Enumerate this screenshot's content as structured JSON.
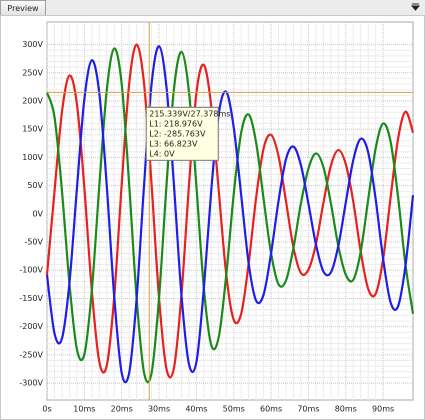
{
  "tab": "Preview",
  "chart_data": {
    "type": "line",
    "x": [
      0,
      2,
      4,
      6,
      8,
      10,
      12,
      14,
      16,
      18,
      20,
      22,
      24,
      26,
      28,
      30,
      32,
      34,
      36,
      38,
      40,
      42,
      44,
      46,
      48,
      50,
      52,
      54,
      56,
      58,
      60,
      62,
      64,
      66,
      68,
      70,
      72,
      74,
      76,
      78,
      80,
      82,
      84,
      86,
      88,
      90,
      92,
      94,
      96,
      98
    ],
    "series": [
      {
        "name": "L1",
        "color": "#e8201e",
        "values": [
          -108,
          39,
          180,
          245,
          195,
          46,
          -136,
          -262,
          -269,
          -147,
          52,
          230,
          300,
          230,
          52,
          -149,
          -275,
          -273,
          -144,
          49,
          214,
          264,
          190,
          40,
          -108,
          -188,
          -177,
          -88,
          29,
          116,
          140,
          102,
          22,
          -60,
          -105,
          -99,
          -54,
          19,
          85,
          113,
          88,
          22,
          -67,
          -133,
          -142,
          -80,
          29,
          133,
          181,
          144
        ]
      },
      {
        "name": "L2",
        "color": "#1a8a1a",
        "values": [
          215,
          172,
          41,
          -123,
          -240,
          -249,
          -136,
          49,
          219,
          293,
          230,
          52,
          -150,
          -282,
          -282,
          -149,
          51,
          222,
          287,
          217,
          49,
          -132,
          -233,
          -218,
          -108,
          35,
          144,
          176,
          126,
          26,
          -70,
          -125,
          -118,
          -60,
          19,
          80,
          107,
          83,
          19,
          -57,
          -108,
          -117,
          -67,
          25,
          116,
          160,
          128,
          30,
          -91,
          -177
        ]
      },
      {
        "name": "L3",
        "color": "#1e1ee8",
        "values": [
          -108,
          -212,
          -221,
          -123,
          44,
          203,
          272,
          214,
          50,
          -147,
          -282,
          -282,
          -150,
          52,
          230,
          297,
          224,
          50,
          -144,
          -266,
          -263,
          -132,
          43,
          178,
          216,
          153,
          33,
          -88,
          -154,
          -143,
          -70,
          23,
          97,
          119,
          86,
          18,
          -54,
          -102,
          -104,
          -57,
          20,
          95,
          133,
          109,
          26,
          -80,
          -157,
          -164,
          -91,
          33
        ]
      }
    ],
    "xlim": [
      0,
      98
    ],
    "xticks": [
      {
        "value": 0,
        "label": "0s"
      },
      {
        "value": 10,
        "label": "10ms"
      },
      {
        "value": 20,
        "label": "20ms"
      },
      {
        "value": 30,
        "label": "30ms"
      },
      {
        "value": 40,
        "label": "40ms"
      },
      {
        "value": 50,
        "label": "50ms"
      },
      {
        "value": 60,
        "label": "60ms"
      },
      {
        "value": 70,
        "label": "70ms"
      },
      {
        "value": 80,
        "label": "80ms"
      },
      {
        "value": 90,
        "label": "90ms"
      }
    ],
    "ylim": [
      -330,
      340
    ],
    "yticks": [
      {
        "value": -300,
        "label": "-300V"
      },
      {
        "value": -250,
        "label": "-250V"
      },
      {
        "value": -200,
        "label": "-200V"
      },
      {
        "value": -150,
        "label": "-150V"
      },
      {
        "value": -100,
        "label": "-100V"
      },
      {
        "value": -50,
        "label": "-50V"
      },
      {
        "value": 0,
        "label": "0V"
      },
      {
        "value": 50,
        "label": "50V"
      },
      {
        "value": 100,
        "label": "100V"
      },
      {
        "value": 150,
        "label": "150V"
      },
      {
        "value": 200,
        "label": "200V"
      },
      {
        "value": 250,
        "label": "250V"
      },
      {
        "value": 300,
        "label": "300V"
      }
    ],
    "grid": true,
    "cursor": {
      "x": 27.378,
      "y": 215.339,
      "color": "#d4a040",
      "lines": [
        "215.339V/27.378ms",
        "L1: 218.976V",
        "L2: -285.763V",
        "L3: 66.823V",
        "L4: 0V"
      ]
    }
  }
}
